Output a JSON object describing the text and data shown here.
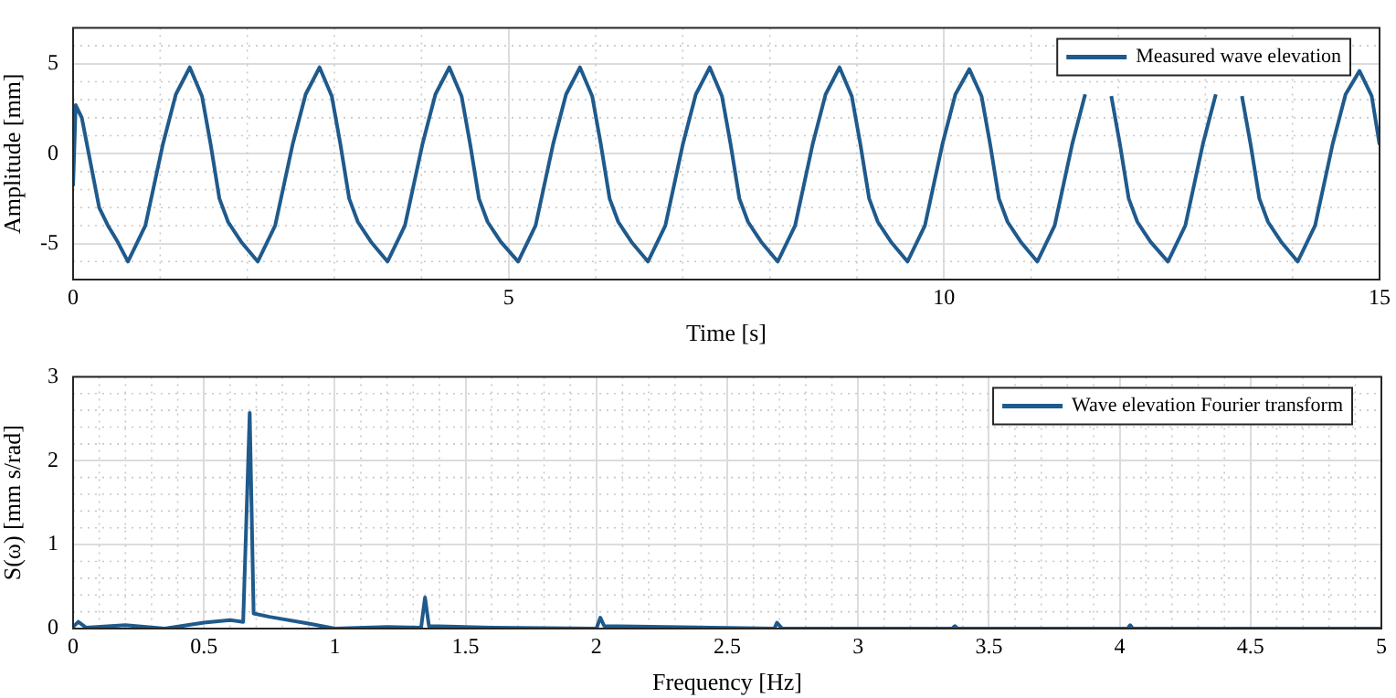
{
  "chart_data": [
    {
      "type": "line",
      "xlabel": "Time [s]",
      "ylabel": "Amplitude [mm]",
      "xlim": [
        0,
        15
      ],
      "xticks": [
        0,
        5,
        10,
        15
      ],
      "ylim": [
        -7,
        7
      ],
      "yticks": [
        -5,
        0,
        5
      ],
      "grid": true,
      "legend": "top right",
      "line_style": "solid",
      "marker": "none",
      "x": [
        0,
        0.03,
        0.1,
        0.2,
        0.3,
        0.4,
        0.5,
        0.63,
        0.83,
        1.03,
        1.18,
        1.34,
        1.48,
        1.58,
        1.68,
        1.78,
        1.93,
        2.12,
        2.32,
        2.52,
        2.67,
        2.83,
        2.97,
        3.07,
        3.17,
        3.27,
        3.42,
        3.61,
        3.81,
        4.01,
        4.16,
        4.32,
        4.46,
        4.56,
        4.66,
        4.76,
        4.91,
        5.11,
        5.31,
        5.51,
        5.66,
        5.82,
        5.96,
        6.06,
        6.16,
        6.26,
        6.41,
        6.6,
        6.8,
        7.0,
        7.15,
        7.31,
        7.45,
        7.55,
        7.65,
        7.75,
        7.9,
        8.09,
        8.29,
        8.49,
        8.64,
        8.8,
        8.94,
        9.04,
        9.14,
        9.24,
        9.39,
        9.58,
        9.78,
        9.98,
        10.13,
        10.29,
        10.43,
        10.53,
        10.63,
        10.73,
        10.88,
        11.07,
        11.27,
        11.47,
        11.62,
        11.78,
        11.92,
        12.02,
        12.12,
        12.22,
        12.37,
        12.57,
        12.77,
        12.97,
        13.12,
        13.28,
        13.42,
        13.52,
        13.62,
        13.72,
        13.87,
        14.06,
        14.26,
        14.46,
        14.61,
        14.77,
        14.91,
        15
      ],
      "series": [
        {
          "name": "Measured wave elevation",
          "color": "#1f5a8c",
          "values": [
            -1.8,
            2.7,
            2.0,
            -0.5,
            -3.0,
            -4.0,
            -4.8,
            -6.0,
            -4.0,
            0.5,
            3.3,
            4.8,
            3.2,
            0.5,
            -2.5,
            -3.8,
            -4.9,
            -6.0,
            -4.0,
            0.5,
            3.3,
            4.8,
            3.2,
            0.5,
            -2.5,
            -3.8,
            -4.9,
            -6.0,
            -4.0,
            0.5,
            3.3,
            4.8,
            3.2,
            0.5,
            -2.5,
            -3.8,
            -4.9,
            -6.0,
            -4.0,
            0.5,
            3.3,
            4.8,
            3.2,
            0.5,
            -2.5,
            -3.8,
            -4.9,
            -6.0,
            -4.0,
            0.5,
            3.3,
            4.8,
            3.2,
            0.5,
            -2.5,
            -3.8,
            -4.9,
            -6.0,
            -4.0,
            0.5,
            3.3,
            4.8,
            3.2,
            0.5,
            -2.5,
            -3.8,
            -4.9,
            -6.0,
            -4.0,
            0.5,
            3.3,
            4.7,
            3.2,
            0.5,
            -2.5,
            -3.8,
            -4.9,
            -6.0,
            -4.0,
            0.5,
            3.3,
            null,
            3.2,
            0.5,
            -2.5,
            -3.8,
            -4.9,
            -6.0,
            -4.0,
            0.5,
            3.3,
            null,
            3.2,
            0.5,
            -2.5,
            -3.8,
            -4.9,
            -6.0,
            -4.0,
            0.5,
            3.3,
            4.6,
            3.2,
            0.5
          ]
        }
      ]
    },
    {
      "type": "line",
      "xlabel": "Frequency [Hz]",
      "ylabel": "S(ω) [mm s/rad]",
      "xlim": [
        0,
        5
      ],
      "xticks": [
        0,
        0.5,
        1,
        1.5,
        2,
        2.5,
        3,
        3.5,
        4,
        4.5,
        5
      ],
      "ylim": [
        0,
        3
      ],
      "yticks": [
        0,
        1,
        2,
        3
      ],
      "grid": true,
      "legend": "top right",
      "line_style": "solid",
      "marker": "none",
      "x": [
        0,
        0.02,
        0.05,
        0.2,
        0.35,
        0.5,
        0.6,
        0.65,
        0.675,
        0.69,
        0.75,
        0.9,
        1.0,
        1.2,
        1.33,
        1.345,
        1.36,
        1.6,
        2.0,
        2.015,
        2.03,
        2.68,
        2.69,
        2.71,
        3.36,
        3.37,
        3.38,
        4.03,
        4.04,
        4.05,
        5
      ],
      "series": [
        {
          "name": "Wave elevation Fourier transform",
          "color": "#1f5a8c",
          "values": [
            0.02,
            0.08,
            0.01,
            0.04,
            0.0,
            0.07,
            0.1,
            0.08,
            2.57,
            0.18,
            0.14,
            0.06,
            0.0,
            0.02,
            0.01,
            0.37,
            0.03,
            0.01,
            0.0,
            0.13,
            0.03,
            0.0,
            0.07,
            0.0,
            0.0,
            0.03,
            0.0,
            0.0,
            0.04,
            0.0,
            0.0
          ]
        }
      ]
    }
  ]
}
